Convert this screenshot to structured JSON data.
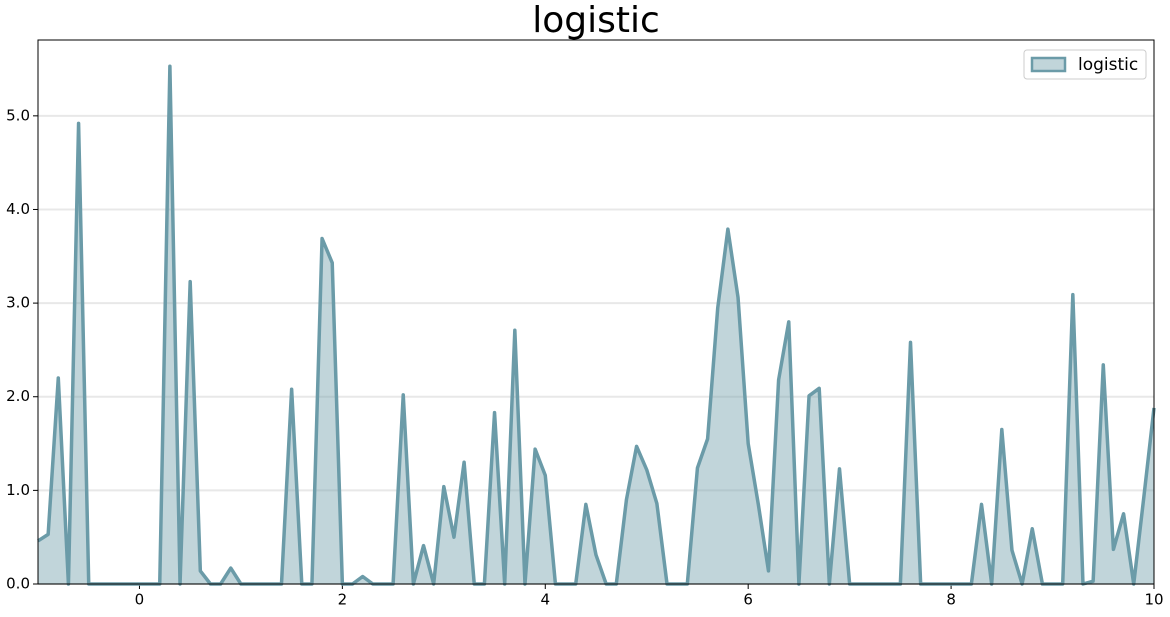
{
  "chart_data": {
    "type": "area",
    "title": "logistic",
    "x": [
      -1.0,
      -0.9,
      -0.8,
      -0.7,
      -0.6,
      -0.5,
      -0.4,
      -0.3,
      -0.2,
      -0.1,
      0.0,
      0.1,
      0.2,
      0.3,
      0.4,
      0.5,
      0.6,
      0.7,
      0.8,
      0.9,
      1.0,
      1.1,
      1.2,
      1.3,
      1.4,
      1.5,
      1.6,
      1.7,
      1.8,
      1.9,
      2.0,
      2.1,
      2.2,
      2.3,
      2.4,
      2.5,
      2.6,
      2.7,
      2.8,
      2.9,
      3.0,
      3.1,
      3.2,
      3.3,
      3.4,
      3.5,
      3.6,
      3.7,
      3.8,
      3.9,
      4.0,
      4.1,
      4.2,
      4.3,
      4.4,
      4.5,
      4.6,
      4.7,
      4.8,
      4.9,
      5.0,
      5.1,
      5.2,
      5.3,
      5.4,
      5.5,
      5.6,
      5.7,
      5.8,
      5.9,
      6.0,
      6.1,
      6.2,
      6.3,
      6.4,
      6.5,
      6.6,
      6.7,
      6.8,
      6.9,
      7.0,
      7.1,
      7.2,
      7.3,
      7.4,
      7.5,
      7.6,
      7.7,
      7.8,
      7.9,
      8.0,
      8.1,
      8.2,
      8.3,
      8.4,
      8.5,
      8.6,
      8.7,
      8.8,
      8.9,
      9.0,
      9.1,
      9.2,
      9.3,
      9.4,
      9.5,
      9.6,
      9.7,
      9.8,
      9.9,
      10.0
    ],
    "series": [
      {
        "name": "logistic",
        "color": "#6b9ba8",
        "values": [
          0.46,
          0.53,
          2.2,
          0,
          4.92,
          0,
          0,
          0,
          0,
          0,
          0,
          0,
          0,
          5.53,
          0,
          3.23,
          0.14,
          0,
          0,
          0.17,
          0,
          0,
          0,
          0,
          0,
          2.08,
          0,
          0,
          3.69,
          3.43,
          0,
          0,
          0.08,
          0,
          0,
          0,
          2.02,
          0,
          0.41,
          0,
          1.04,
          0.5,
          1.3,
          0,
          0,
          1.83,
          0,
          2.71,
          0,
          1.44,
          1.16,
          0,
          0,
          0,
          0.85,
          0.31,
          0,
          0,
          0.9,
          1.47,
          1.22,
          0.86,
          0,
          0,
          0,
          1.24,
          1.55,
          2.95,
          3.79,
          3.06,
          1.5,
          0.85,
          0.14,
          2.18,
          2.8,
          0,
          2.01,
          2.09,
          0,
          1.23,
          0,
          0,
          0,
          0,
          0,
          0,
          2.58,
          0,
          0,
          0,
          0,
          0,
          0,
          0.85,
          0,
          1.65,
          0.36,
          0,
          0.59,
          0,
          0,
          0,
          3.09,
          0,
          0.03,
          2.34,
          0.37,
          0.75,
          0,
          0.93,
          1.88
        ]
      }
    ],
    "xlim": [
      -1,
      10
    ],
    "ylim": [
      0,
      5.81
    ],
    "xticks": [
      0,
      2,
      4,
      6,
      8,
      10
    ],
    "yticks": [
      {
        "value": 0,
        "label": "0.0"
      },
      {
        "value": 1,
        "label": "1.0"
      },
      {
        "value": 2,
        "label": "2.0"
      },
      {
        "value": 3,
        "label": "3.0"
      },
      {
        "value": 4,
        "label": "4.0"
      },
      {
        "value": 5,
        "label": "5.0"
      }
    ],
    "grid": true,
    "legend": "upper right"
  }
}
